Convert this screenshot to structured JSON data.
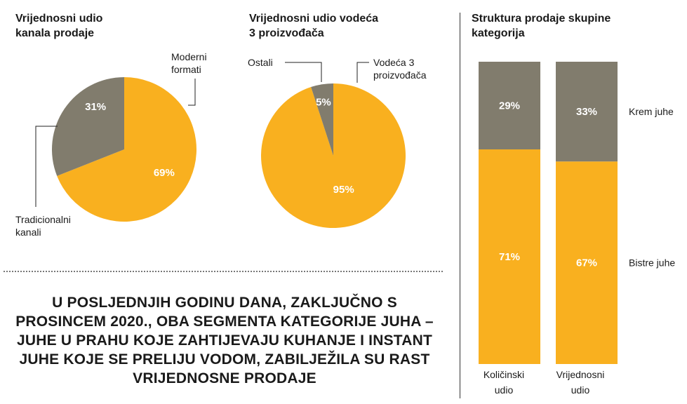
{
  "colors": {
    "primary": "#f9b01f",
    "secondary": "#817c6d"
  },
  "chart_data": [
    {
      "type": "pie",
      "title": "Vrijednosni udio\nkanala prodaje",
      "slices": [
        {
          "label": "Moderni\nformati",
          "value": 69,
          "display": "69%",
          "color": "#f9b01f"
        },
        {
          "label": "Tradicionalni\nkanali",
          "value": 31,
          "display": "31%",
          "color": "#817c6d"
        }
      ]
    },
    {
      "type": "pie",
      "title": "Vrijednosni udio vodeća\n3 proizvođača",
      "slices": [
        {
          "label": "Vodeća 3\nproizvođača",
          "value": 95,
          "display": "95%",
          "color": "#f9b01f"
        },
        {
          "label": "Ostali",
          "value": 5,
          "display": "5%",
          "color": "#817c6d"
        }
      ]
    },
    {
      "type": "bar",
      "stacked": true,
      "title": "Struktura prodaje skupine\nkategorija",
      "categories": [
        "Količinski\nudio",
        "Vrijednosni\nudio"
      ],
      "series": [
        {
          "name": "Bistre juhe",
          "values": [
            71,
            67
          ],
          "labels": [
            "71%",
            "67%"
          ],
          "color": "#f9b01f"
        },
        {
          "name": "Krem juhe",
          "values": [
            29,
            33
          ],
          "labels": [
            "29%",
            "33%"
          ],
          "color": "#817c6d"
        }
      ]
    }
  ],
  "note": "U POSLJEDNJIH GODINU DANA, ZAKLJUČNO S PROSINCEM 2020., OBA SEGMENTA KATEGORIJE JUHA – JUHE U PRAHU KOJE ZAHTIJEVAJU KUHANJE I INSTANT JUHE KOJE SE PRELIJU VODOM, ZABILJEŽILA SU RAST VRIJEDNOSNE PRODAJE"
}
